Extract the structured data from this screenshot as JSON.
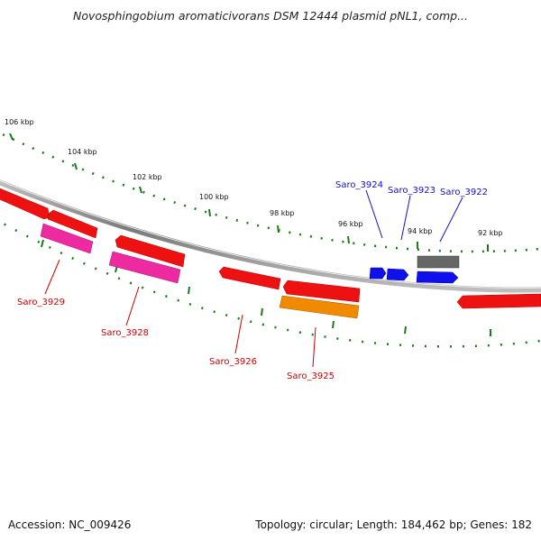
{
  "title": "Novosphingobium aromaticivorans DSM 12444 plasmid pNL1, comp...",
  "accession_text": "Accession: NC_009426",
  "topology_text": "Topology: circular; Length: 184,462 bp; Genes: 182",
  "colors": {
    "backbone": "#8a8a8a",
    "tick": "#1a7a1a",
    "label_red": "#cc0000",
    "label_blue": "#1010cc",
    "gene_red": "#ee1111",
    "gene_pink": "#ee2aa0",
    "gene_orange": "#f08a00",
    "gene_blue": "#1010ee",
    "gene_gray": "#666666"
  },
  "ruler": {
    "labels": [
      "106 kbp",
      "104 kbp",
      "102 kbp",
      "100 kbp",
      "98 kbp",
      "96 kbp",
      "94 kbp",
      "92 kbp"
    ]
  },
  "genes": {
    "labeled": [
      "Saro_3929",
      "Saro_3928",
      "Saro_3926",
      "Saro_3925",
      "Saro_3924",
      "Saro_3923",
      "Saro_3922"
    ]
  }
}
